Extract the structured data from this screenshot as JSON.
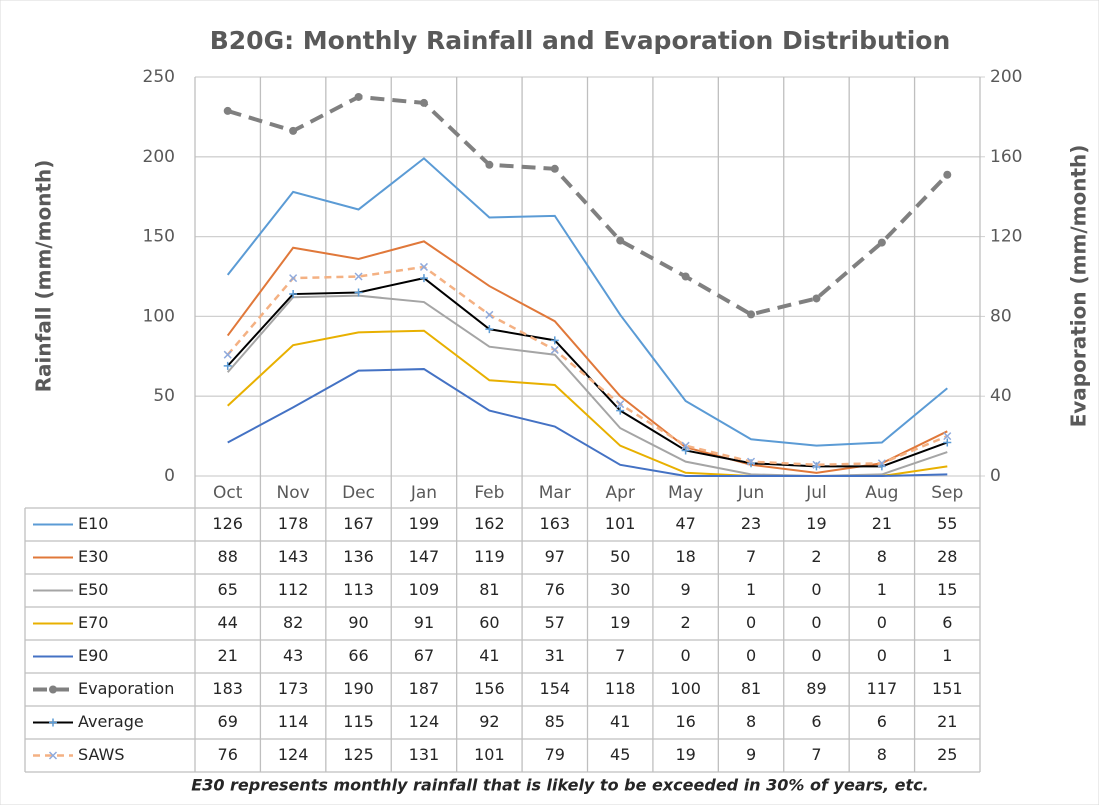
{
  "chart_data": {
    "type": "line",
    "title": "B20G: Monthly Rainfall and Evaporation Distribution",
    "ylabel": "Rainfall  (mm/month)",
    "y2label": "Evaporation (mm/month)",
    "footnote": "E30 represents monthly rainfall that is likely to be exceeded in 30% of years, etc.",
    "categories": [
      "Oct",
      "Nov",
      "Dec",
      "Jan",
      "Feb",
      "Mar",
      "Apr",
      "May",
      "Jun",
      "Jul",
      "Aug",
      "Sep"
    ],
    "ylim": [
      0,
      250
    ],
    "yticks": [
      0,
      50,
      100,
      150,
      200,
      250
    ],
    "y2lim": [
      0,
      200
    ],
    "y2ticks": [
      0,
      40,
      80,
      120,
      160,
      200
    ],
    "grid": true,
    "series": [
      {
        "name": "E10",
        "color": "#5b9bd5",
        "values": [
          126,
          178,
          167,
          199,
          162,
          163,
          101,
          47,
          23,
          19,
          21,
          55
        ]
      },
      {
        "name": "E30",
        "color": "#e0783a",
        "values": [
          88,
          143,
          136,
          147,
          119,
          97,
          50,
          18,
          7,
          2,
          8,
          28
        ]
      },
      {
        "name": "E50",
        "color": "#a5a5a5",
        "values": [
          65,
          112,
          113,
          109,
          81,
          76,
          30,
          9,
          1,
          0,
          1,
          15
        ]
      },
      {
        "name": "E70",
        "color": "#e8b000",
        "values": [
          44,
          82,
          90,
          91,
          60,
          57,
          19,
          2,
          0,
          0,
          0,
          6
        ]
      },
      {
        "name": "E90",
        "color": "#4472c4",
        "values": [
          21,
          43,
          66,
          67,
          41,
          31,
          7,
          0,
          0,
          0,
          0,
          1
        ]
      },
      {
        "name": "Evaporation",
        "color": "#808080",
        "axis": "y2",
        "dashed": true,
        "marker": "circle",
        "values": [
          183,
          173,
          190,
          187,
          156,
          154,
          118,
          100,
          81,
          89,
          117,
          151
        ]
      },
      {
        "name": "Average",
        "color": "#000000",
        "marker": "plus",
        "values": [
          69,
          114,
          115,
          124,
          92,
          85,
          41,
          16,
          8,
          6,
          6,
          21
        ]
      },
      {
        "name": "SAWS",
        "color": "#f4b183",
        "dashed": true,
        "marker": "cross",
        "values": [
          76,
          124,
          125,
          131,
          101,
          79,
          45,
          19,
          9,
          7,
          8,
          25
        ]
      }
    ]
  }
}
